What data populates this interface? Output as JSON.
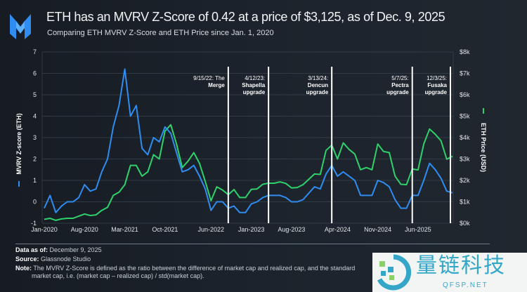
{
  "header": {
    "title": "ETH has an MVRV Z-Score of 0.42 at a price of $3,125, as of Dec. 9, 2025",
    "subtitle": "Comparing ETH MVRV Z-Score and ETH Price since Jan. 1, 2020"
  },
  "footer": {
    "data_as_of_label": "Data as of:",
    "data_as_of": "December 9, 2025",
    "source_label": "Source:",
    "source": "Glassnode Studio",
    "note_label": "Note:",
    "note_line1": "The MVRV Z-Score is defined as the ratio between the difference of market cap and realized cap, and the standard",
    "note_line2": "market cap, i.e. (market cap – realized cap) / std(market cap)."
  },
  "watermark": {
    "text": "量链科技",
    "sub": "QFSP.NET"
  },
  "chart_data": {
    "type": "line",
    "title": "ETH has an MVRV Z-Score of 0.42 at a price of $3,125, as of Dec. 9, 2025",
    "subtitle": "Comparing ETH MVRV Z-Score and ETH Price since Jan. 1, 2020",
    "ylabel": "MVRV Z-score (ETH)",
    "y2label": "ETH Price (USD)",
    "ylim": [
      -1,
      7
    ],
    "y2lim": [
      0,
      8000
    ],
    "yticks": [
      "7",
      "6",
      "5",
      "4",
      "3",
      "2",
      "1",
      "0",
      "-1"
    ],
    "y2ticks": [
      "$8k",
      "$7k",
      "$6k",
      "$5k",
      "$4k",
      "$3k",
      "$2k",
      "$1k",
      "$0k"
    ],
    "xticks": [
      "Jan-2020",
      "Aug-2020",
      "Mar-2021",
      "Oct-2021",
      "Jun-2022",
      "Jan-2023",
      "Aug-2023",
      "Apr-2024",
      "Nov-2024",
      "Jun-2025"
    ],
    "xtick_dates": [
      "2020-01",
      "2020-08",
      "2021-03",
      "2021-10",
      "2022-06",
      "2023-01",
      "2023-08",
      "2024-04",
      "2024-11",
      "2025-06"
    ],
    "grid": true,
    "colors": {
      "zscore": "#2f8cf0",
      "price": "#2fd16a",
      "annotation": "#ffffff"
    },
    "annotations": [
      {
        "date": "2022-09",
        "label": [
          "9/15/22: The",
          "Merge"
        ]
      },
      {
        "date": "2023-04",
        "label": [
          "4/12/23:",
          "Shapella",
          "upgrade"
        ]
      },
      {
        "date": "2024-03",
        "label": [
          "3/13/24:",
          "Dencun",
          "upgrade"
        ]
      },
      {
        "date": "2025-05",
        "label": [
          "5/7/25:",
          "Pectra",
          "upgrade"
        ]
      },
      {
        "date": "2025-12",
        "label": [
          "12/3/25:",
          "Fusaka",
          "upgrade"
        ]
      }
    ],
    "x": [
      "2020-01",
      "2020-02",
      "2020-03",
      "2020-04",
      "2020-05",
      "2020-06",
      "2020-07",
      "2020-08",
      "2020-09",
      "2020-10",
      "2020-11",
      "2020-12",
      "2021-01",
      "2021-02",
      "2021-03",
      "2021-04",
      "2021-05",
      "2021-06",
      "2021-07",
      "2021-08",
      "2021-09",
      "2021-10",
      "2021-11",
      "2021-12",
      "2022-01",
      "2022-02",
      "2022-03",
      "2022-04",
      "2022-05",
      "2022-06",
      "2022-07",
      "2022-08",
      "2022-09",
      "2022-10",
      "2022-11",
      "2022-12",
      "2023-01",
      "2023-02",
      "2023-03",
      "2023-04",
      "2023-05",
      "2023-06",
      "2023-07",
      "2023-08",
      "2023-09",
      "2023-10",
      "2023-11",
      "2023-12",
      "2024-01",
      "2024-02",
      "2024-03",
      "2024-04",
      "2024-05",
      "2024-06",
      "2024-07",
      "2024-08",
      "2024-09",
      "2024-10",
      "2024-11",
      "2024-12",
      "2025-01",
      "2025-02",
      "2025-03",
      "2025-04",
      "2025-05",
      "2025-06",
      "2025-07",
      "2025-08",
      "2025-09",
      "2025-10",
      "2025-11",
      "2025-12"
    ],
    "series": [
      {
        "name": "MVRV Z-score (ETH)",
        "axis": "left",
        "values": [
          -0.3,
          0.3,
          -0.5,
          -0.2,
          0,
          0,
          0.2,
          0.8,
          0.5,
          0.6,
          1.4,
          2.0,
          3.5,
          4.5,
          6.2,
          4.0,
          4.5,
          2.5,
          2.2,
          3.0,
          2.8,
          3.5,
          3.2,
          2.3,
          1.4,
          1.5,
          1.7,
          1.2,
          0.6,
          -0.4,
          0,
          0,
          -0.3,
          -0.2,
          -0.5,
          -0.5,
          -0.1,
          0,
          0.2,
          0.3,
          0.3,
          0.3,
          0.2,
          0,
          0,
          0.1,
          0.4,
          0.7,
          0.6,
          1.3,
          1.7,
          1.2,
          1.4,
          1.2,
          1.0,
          0.3,
          0.3,
          0.3,
          1.0,
          0.9,
          0.7,
          0.1,
          -0.3,
          -0.3,
          0.3,
          0.3,
          1.0,
          1.8,
          1.5,
          1.1,
          0.5,
          0.42
        ]
      },
      {
        "name": "ETH Price (USD)",
        "axis": "right",
        "values": [
          180,
          230,
          135,
          200,
          230,
          230,
          330,
          430,
          360,
          390,
          600,
          740,
          1300,
          1450,
          1800,
          2700,
          2700,
          2200,
          2400,
          3200,
          3000,
          4300,
          4600,
          3700,
          2600,
          2900,
          3300,
          2800,
          1950,
          1050,
          1700,
          1550,
          1330,
          1570,
          1200,
          1200,
          1580,
          1600,
          1820,
          1870,
          1870,
          1930,
          1860,
          1650,
          1670,
          1800,
          2050,
          2300,
          2280,
          3400,
          3650,
          3000,
          3750,
          3450,
          3230,
          2500,
          2600,
          2500,
          3700,
          3350,
          3300,
          2200,
          1820,
          1800,
          2530,
          2490,
          3700,
          4400,
          4150,
          3850,
          2990,
          3125
        ]
      }
    ]
  }
}
